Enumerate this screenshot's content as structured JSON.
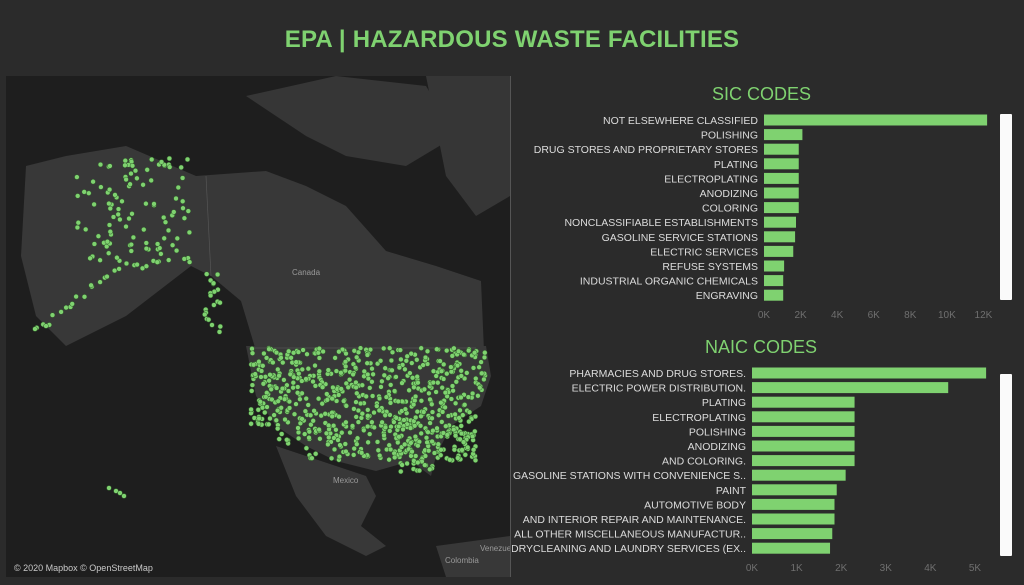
{
  "title": "EPA | HAZARDOUS WASTE FACILITIES",
  "map": {
    "labels": {
      "canada": "Canada",
      "mexico": "Mexico",
      "venezuela": "Venezue",
      "colombia": "Colombia"
    },
    "attribution": "© 2020 Mapbox © OpenStreetMap",
    "point_color": "#7fd270"
  },
  "sic": {
    "title": "SIC CODES",
    "bar_color": "#7fd270",
    "chart_data": {
      "type": "bar",
      "orientation": "horizontal",
      "categories": [
        "NOT ELSEWHERE CLASSIFIED",
        "POLISHING",
        "DRUG STORES AND PROPRIETARY STORES",
        "PLATING",
        "ELECTROPLATING",
        "ANODIZING",
        "COLORING",
        "NONCLASSIFIABLE ESTABLISHMENTS",
        "GASOLINE SERVICE STATIONS",
        "ELECTRIC SERVICES",
        "REFUSE SYSTEMS",
        "INDUSTRIAL ORGANIC CHEMICALS",
        "ENGRAVING"
      ],
      "values": [
        12200,
        2100,
        1900,
        1900,
        1900,
        1900,
        1900,
        1750,
        1700,
        1600,
        1100,
        1050,
        1050
      ],
      "xlim": [
        0,
        12500
      ],
      "ticks": [
        0,
        2000,
        4000,
        6000,
        8000,
        10000,
        12000
      ],
      "tick_labels": [
        "0K",
        "2K",
        "4K",
        "6K",
        "8K",
        "10K",
        "12K"
      ],
      "title": "SIC CODES"
    }
  },
  "naic": {
    "title": "NAIC CODES",
    "bar_color": "#7fd270",
    "chart_data": {
      "type": "bar",
      "orientation": "horizontal",
      "categories": [
        "PHARMACIES AND DRUG STORES.",
        "ELECTRIC POWER DISTRIBUTION.",
        "PLATING",
        "ELECTROPLATING",
        "POLISHING",
        "ANODIZING",
        "AND COLORING.",
        "GASOLINE STATIONS WITH CONVENIENCE S..",
        "PAINT",
        "AUTOMOTIVE BODY",
        "AND INTERIOR REPAIR AND MAINTENANCE.",
        "ALL OTHER MISCELLANEOUS MANUFACTUR..",
        "DRYCLEANING AND LAUNDRY SERVICES (EX.."
      ],
      "values": [
        5250,
        4400,
        2300,
        2300,
        2300,
        2300,
        2300,
        2100,
        1900,
        1850,
        1850,
        1800,
        1750
      ],
      "xlim": [
        0,
        5400
      ],
      "ticks": [
        0,
        1000,
        2000,
        3000,
        4000,
        5000
      ],
      "tick_labels": [
        "0K",
        "1K",
        "2K",
        "3K",
        "4K",
        "5K"
      ],
      "title": "NAIC CODES"
    }
  }
}
